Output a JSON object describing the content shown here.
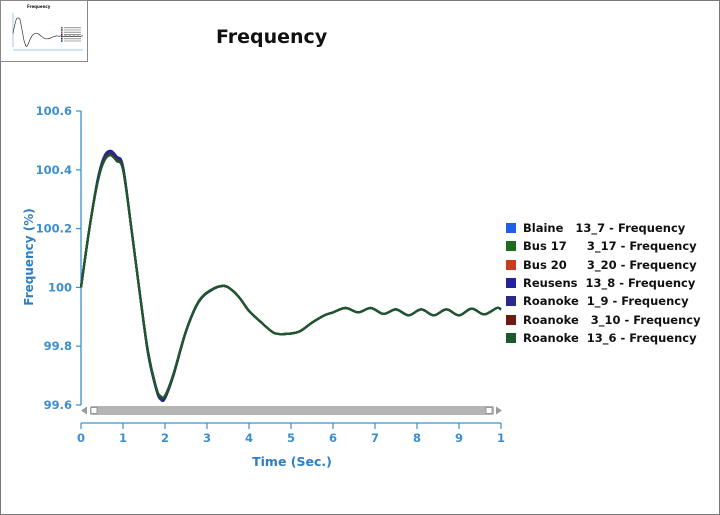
{
  "chart_data": {
    "type": "line",
    "title": "Frequency",
    "xlabel": "Time (Sec.)",
    "ylabel": "Frequency (%)",
    "xlim": [
      0,
      10
    ],
    "ylim": [
      99.6,
      100.6
    ],
    "x_ticks": [
      "0",
      "1",
      "2",
      "3",
      "4",
      "5",
      "6",
      "7",
      "8",
      "9",
      "1"
    ],
    "y_ticks": [
      "100.6",
      "100.4",
      "100.2",
      "100",
      "99.8",
      "99.6"
    ],
    "legend_position": "right",
    "x": [
      0,
      0.2,
      0.4,
      0.55,
      0.7,
      0.85,
      1.0,
      1.2,
      1.4,
      1.6,
      1.8,
      1.9,
      2.0,
      2.2,
      2.5,
      2.8,
      3.1,
      3.4,
      3.6,
      3.8,
      4.0,
      4.3,
      4.6,
      4.9,
      5.2,
      5.5,
      5.8,
      6.0,
      6.3,
      6.6,
      6.9,
      7.2,
      7.5,
      7.8,
      8.1,
      8.4,
      8.7,
      9.0,
      9.3,
      9.6,
      9.9,
      10.0
    ],
    "series": [
      {
        "name": "Blaine   13_7 - Frequency",
        "color": "#1f5fe8",
        "values": [
          100.0,
          100.2,
          100.37,
          100.44,
          100.46,
          100.44,
          100.41,
          100.2,
          99.98,
          99.77,
          99.65,
          99.62,
          99.625,
          99.7,
          99.85,
          99.95,
          99.99,
          100.005,
          99.99,
          99.96,
          99.92,
          99.88,
          99.845,
          99.842,
          99.85,
          99.88,
          99.905,
          99.915,
          99.93,
          99.915,
          99.93,
          99.91,
          99.925,
          99.905,
          99.925,
          99.905,
          99.925,
          99.905,
          99.928,
          99.908,
          99.93,
          99.925
        ]
      },
      {
        "name": "Bus 17     3_17 - Frequency",
        "color": "#1d6b1d",
        "values": [
          100.0,
          100.2,
          100.36,
          100.43,
          100.45,
          100.43,
          100.4,
          100.2,
          99.98,
          99.78,
          99.655,
          99.63,
          99.63,
          99.705,
          99.852,
          99.952,
          99.992,
          100.005,
          99.99,
          99.96,
          99.92,
          99.88,
          99.845,
          99.842,
          99.85,
          99.88,
          99.905,
          99.915,
          99.93,
          99.915,
          99.93,
          99.91,
          99.925,
          99.905,
          99.925,
          99.905,
          99.925,
          99.905,
          99.928,
          99.908,
          99.93,
          99.925
        ]
      },
      {
        "name": "Bus 20     3_20 - Frequency",
        "color": "#c83b1e",
        "values": [
          100.0,
          100.2,
          100.365,
          100.435,
          100.455,
          100.435,
          100.405,
          100.2,
          99.98,
          99.775,
          99.652,
          99.625,
          99.628,
          99.702,
          99.85,
          99.95,
          99.99,
          100.005,
          99.99,
          99.96,
          99.92,
          99.88,
          99.845,
          99.842,
          99.85,
          99.88,
          99.905,
          99.915,
          99.93,
          99.915,
          99.93,
          99.91,
          99.925,
          99.905,
          99.925,
          99.905,
          99.925,
          99.905,
          99.928,
          99.908,
          99.93,
          99.925
        ]
      },
      {
        "name": "Reusens  13_8 - Frequency",
        "color": "#23239b",
        "values": [
          100.0,
          100.2,
          100.37,
          100.445,
          100.465,
          100.445,
          100.412,
          100.2,
          99.98,
          99.772,
          99.648,
          99.618,
          99.622,
          99.7,
          99.85,
          99.95,
          99.99,
          100.005,
          99.99,
          99.96,
          99.92,
          99.88,
          99.845,
          99.842,
          99.85,
          99.88,
          99.905,
          99.915,
          99.93,
          99.915,
          99.93,
          99.91,
          99.925,
          99.905,
          99.925,
          99.905,
          99.925,
          99.905,
          99.928,
          99.908,
          99.93,
          99.925
        ]
      },
      {
        "name": "Roanoke  1_9 - Frequency",
        "color": "#2a2a88",
        "values": [
          100.0,
          100.2,
          100.368,
          100.44,
          100.46,
          100.44,
          100.408,
          100.2,
          99.98,
          99.774,
          99.65,
          99.62,
          99.624,
          99.7,
          99.85,
          99.95,
          99.99,
          100.005,
          99.99,
          99.96,
          99.92,
          99.88,
          99.845,
          99.842,
          99.85,
          99.88,
          99.905,
          99.915,
          99.93,
          99.915,
          99.93,
          99.91,
          99.925,
          99.905,
          99.925,
          99.905,
          99.925,
          99.905,
          99.928,
          99.908,
          99.93,
          99.925
        ]
      },
      {
        "name": "Roanoke   3_10 - Frequency",
        "color": "#6b1b14",
        "values": [
          100.0,
          100.2,
          100.362,
          100.432,
          100.452,
          100.432,
          100.402,
          100.2,
          99.98,
          99.778,
          99.654,
          99.628,
          99.63,
          99.704,
          99.852,
          99.952,
          99.992,
          100.005,
          99.99,
          99.96,
          99.92,
          99.88,
          99.845,
          99.842,
          99.85,
          99.88,
          99.905,
          99.915,
          99.93,
          99.915,
          99.93,
          99.91,
          99.925,
          99.905,
          99.925,
          99.905,
          99.925,
          99.905,
          99.928,
          99.908,
          99.93,
          99.925
        ]
      },
      {
        "name": "Roanoke  13_6 - Frequency",
        "color": "#1a5a2c",
        "values": [
          100.0,
          100.2,
          100.362,
          100.43,
          100.45,
          100.43,
          100.4,
          100.2,
          99.98,
          99.778,
          99.655,
          99.63,
          99.632,
          99.705,
          99.852,
          99.952,
          99.992,
          100.005,
          99.99,
          99.96,
          99.92,
          99.88,
          99.845,
          99.842,
          99.85,
          99.88,
          99.905,
          99.915,
          99.93,
          99.915,
          99.93,
          99.91,
          99.925,
          99.905,
          99.925,
          99.905,
          99.925,
          99.905,
          99.928,
          99.908,
          99.93,
          99.925
        ]
      }
    ]
  },
  "thumbnail": {
    "title": "Frequency"
  },
  "colors": {
    "axis": "#3a8fd0",
    "scrollbar": "#b4b4b4"
  }
}
